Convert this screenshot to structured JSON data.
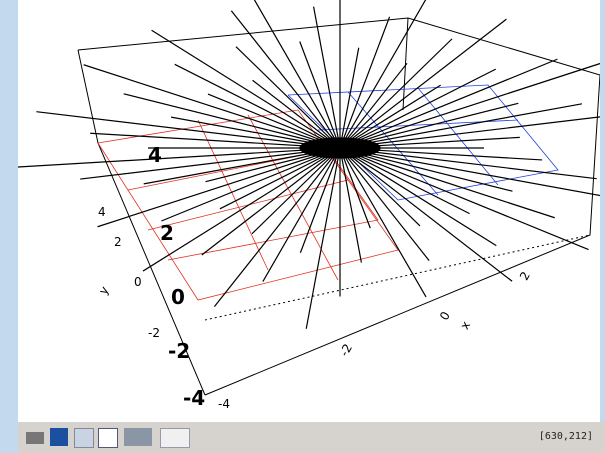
{
  "plot": {
    "z_ticks": [
      "4",
      "2",
      "0",
      "-2",
      "-4"
    ],
    "y_ticks": [
      "4",
      "2",
      "0",
      "-2",
      "-4"
    ],
    "y_label": "y",
    "x_ticks": [
      "-2",
      "0",
      "2"
    ],
    "x_label": "x"
  },
  "status": "[630,212]"
}
